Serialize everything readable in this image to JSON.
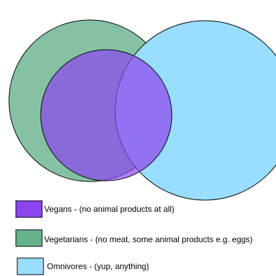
{
  "sets": [
    {
      "key": "vegetarians",
      "label": "Vegetarians - (no meat, some animal products e.g. eggs)",
      "color": "#66b38c"
    },
    {
      "key": "omnivores",
      "label": "Omnivores - (yup, anything)",
      "color": "#99ddff"
    },
    {
      "key": "vegans",
      "label": "Vegans - (no animal products at all)",
      "color": "#8b44ee"
    }
  ],
  "legend_order": [
    "vegans",
    "vegetarians",
    "omnivores"
  ]
}
